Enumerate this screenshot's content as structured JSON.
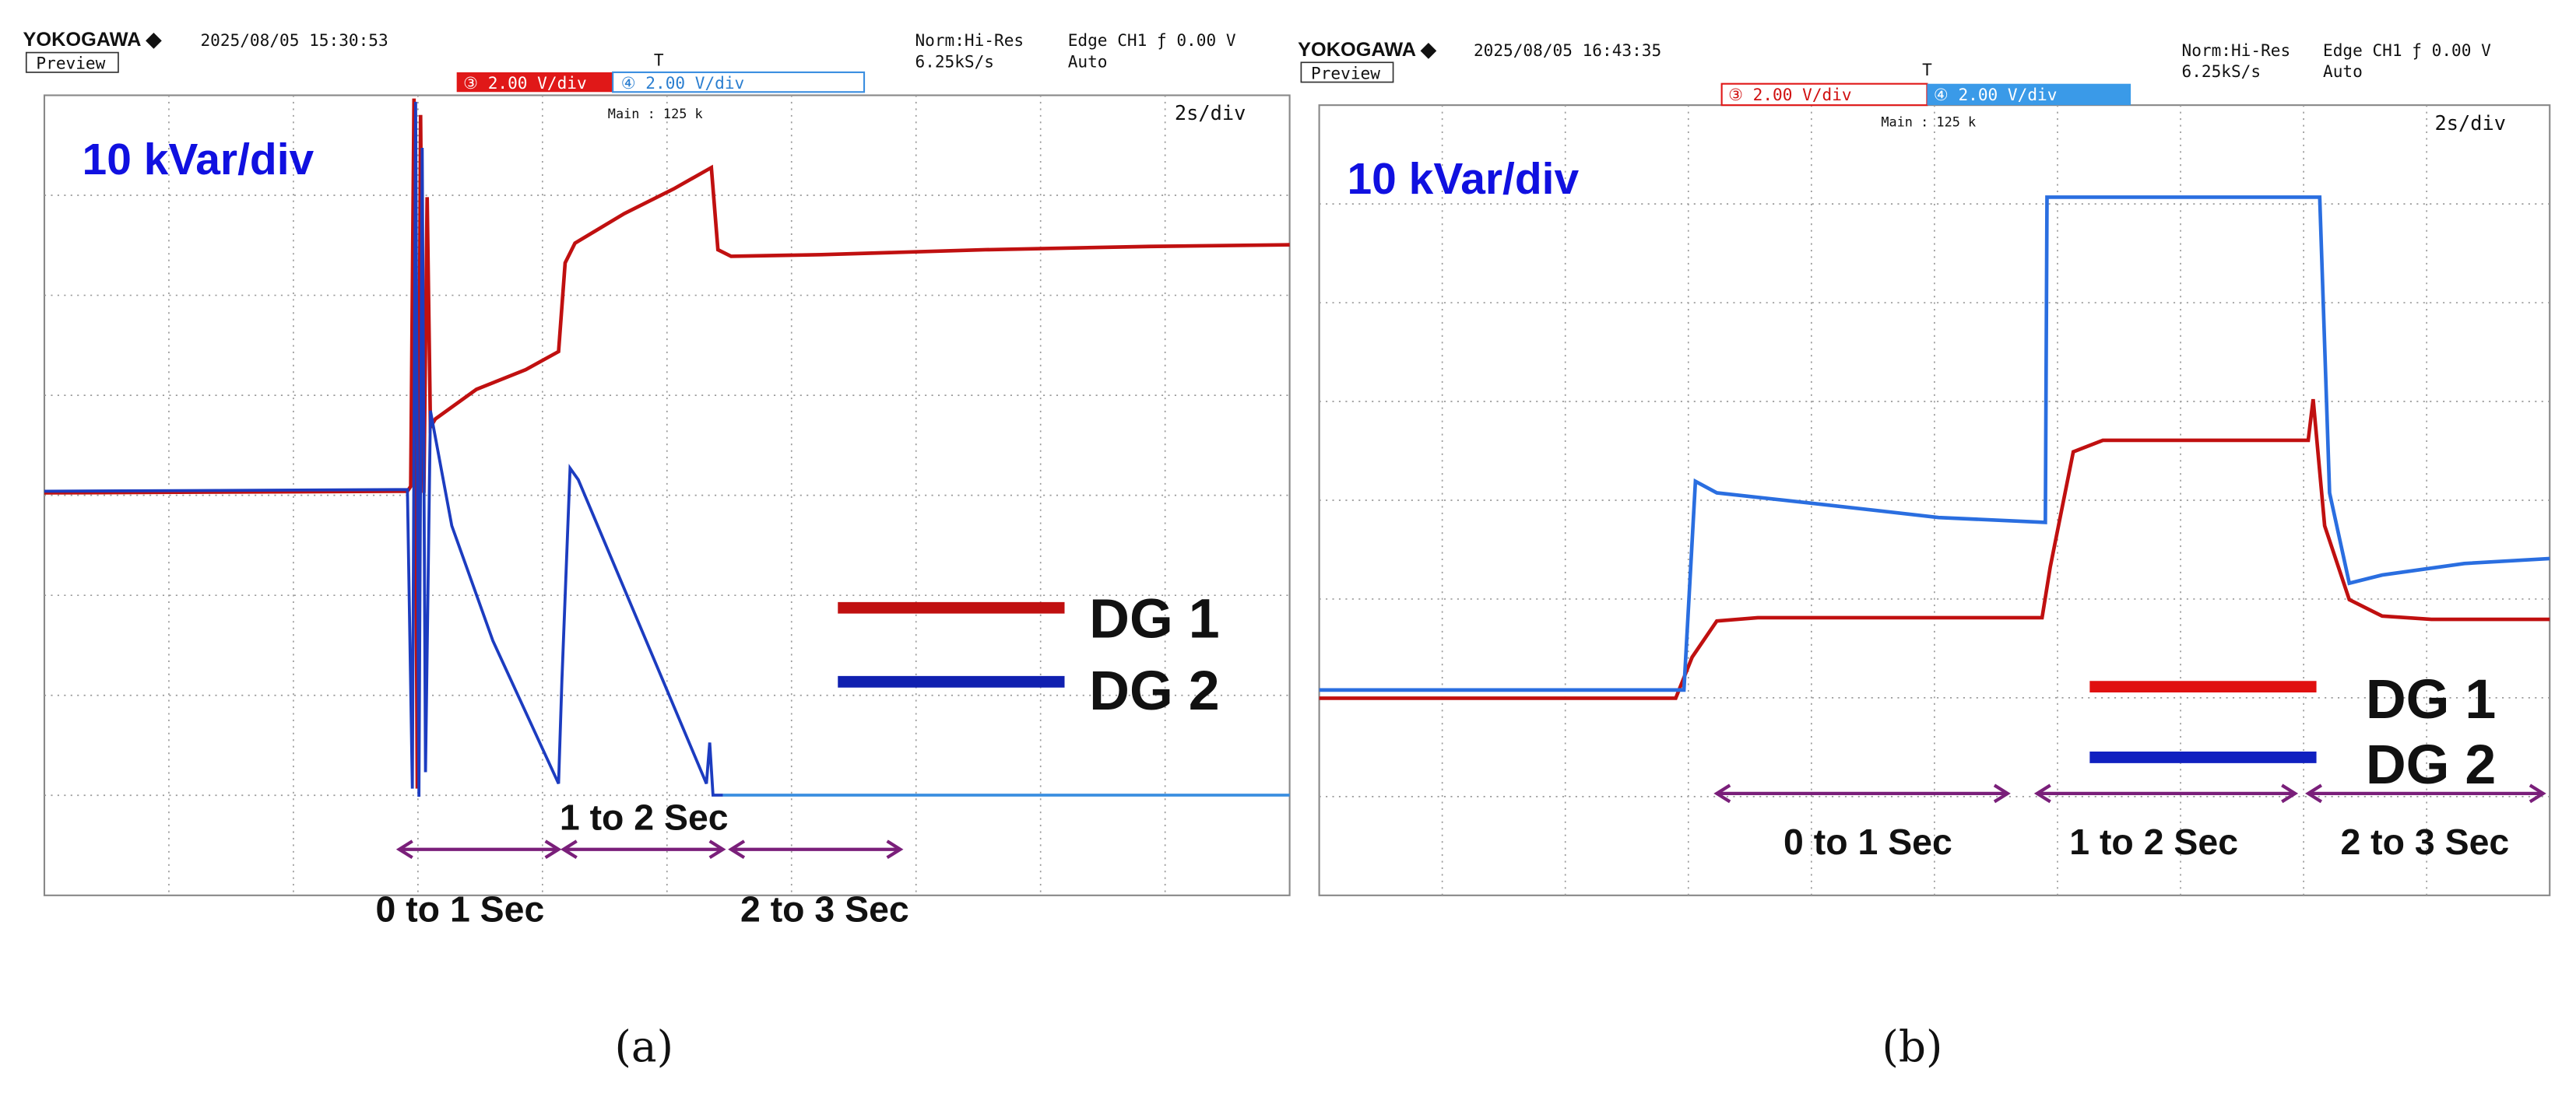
{
  "panels": [
    {
      "header": {
        "brand": "YOKOGAWA ◆",
        "timestamp": "2025/08/05 15:30:53",
        "preview": "Preview",
        "mode": "Norm:Hi-Res",
        "rate": "6.25kS/s",
        "trigger": "Edge CH1 ƒ 0.00 V",
        "trigger_mode": "Auto"
      },
      "channels": [
        "③ 2.00 V/div",
        "④ 2.00 V/div"
      ],
      "main": "Main : 125 k",
      "timebase": "2s/div",
      "scale_label": "10 kVar/div",
      "legend": [
        "DG 1",
        "DG 2"
      ],
      "intervals": [
        "0 to 1 Sec",
        "1 to 2 Sec",
        "2 to 3 Sec"
      ],
      "caption": "(a)"
    },
    {
      "header": {
        "brand": "YOKOGAWA ◆",
        "timestamp": "2025/08/05 16:43:35",
        "preview": "Preview",
        "mode": "Norm:Hi-Res",
        "rate": "6.25kS/s",
        "trigger": "Edge CH1 ƒ 0.00 V",
        "trigger_mode": "Auto"
      },
      "channels": [
        "③ 2.00 V/div",
        "④ 2.00 V/div"
      ],
      "main": "Main : 125 k",
      "timebase": "2s/div",
      "scale_label": "10 kVar/div",
      "legend": [
        "DG 1",
        "DG 2"
      ],
      "intervals": [
        "0 to 1 Sec",
        "1 to 2 Sec",
        "2 to 3 Sec"
      ],
      "caption": "(b)"
    }
  ]
}
